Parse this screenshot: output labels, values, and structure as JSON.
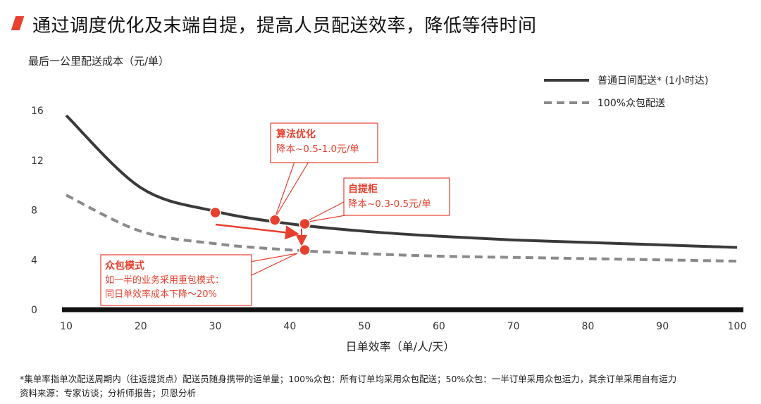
{
  "header": {
    "title": "通过调度优化及末端自提，提高人员配送效率，降低等待时间",
    "accent_color": "#e8402f"
  },
  "chart_data": {
    "type": "line",
    "ylabel": "最后一公里配送成本（元/单）",
    "xlabel": "日单效率（单/人/天）",
    "xlim": [
      10,
      100
    ],
    "ylim": [
      0,
      16
    ],
    "xticks": [
      "10",
      "20",
      "30",
      "40",
      "50",
      "60",
      "70",
      "80",
      "90",
      "100"
    ],
    "yticks": [
      "0",
      "4",
      "8",
      "12",
      "16"
    ],
    "grid": false,
    "legend_position": "top-right",
    "series": [
      {
        "name": "普通日间配送* (1小时达)",
        "style": "solid",
        "color": "#3a3a3a",
        "x": [
          10,
          20,
          30,
          40,
          50,
          60,
          70,
          80,
          90,
          100
        ],
        "y": [
          15.6,
          9.8,
          7.9,
          6.9,
          6.3,
          5.9,
          5.6,
          5.4,
          5.2,
          5.0
        ]
      },
      {
        "name": "100%众包配送",
        "style": "dashed",
        "color": "#8a8a8a",
        "x": [
          10,
          20,
          30,
          40,
          50,
          60,
          70,
          80,
          90,
          100
        ],
        "y": [
          9.2,
          6.3,
          5.3,
          4.8,
          4.5,
          4.3,
          4.2,
          4.1,
          4.0,
          3.9
        ]
      }
    ],
    "highlight_points": [
      {
        "x": 30,
        "y": 7.8
      },
      {
        "x": 38,
        "y": 7.2
      },
      {
        "x": 42,
        "y": 6.9
      },
      {
        "x": 42,
        "y": 4.8
      }
    ],
    "annotations": [
      {
        "title": "算法优化",
        "lines": [
          "降本~0.5-1.0元/单"
        ]
      },
      {
        "title": "自提柜",
        "lines": [
          "降本~0.3-0.5元/单"
        ]
      },
      {
        "title": "众包模式",
        "lines": [
          "如一半的业务采用重包模式：",
          "同日单效率成本下降～20%"
        ]
      }
    ],
    "annotation_color": "#e8402f"
  },
  "footnotes": {
    "line1": "*集单率指单次配送周期内（往返提货点）配送员随身携带的运单量；100%众包：所有订单均采用众包配送；50%众包：一半订单采用众包运力，其余订单采用自有运力",
    "line2": "资料来源：专家访谈；分析师报告；贝恩分析"
  }
}
